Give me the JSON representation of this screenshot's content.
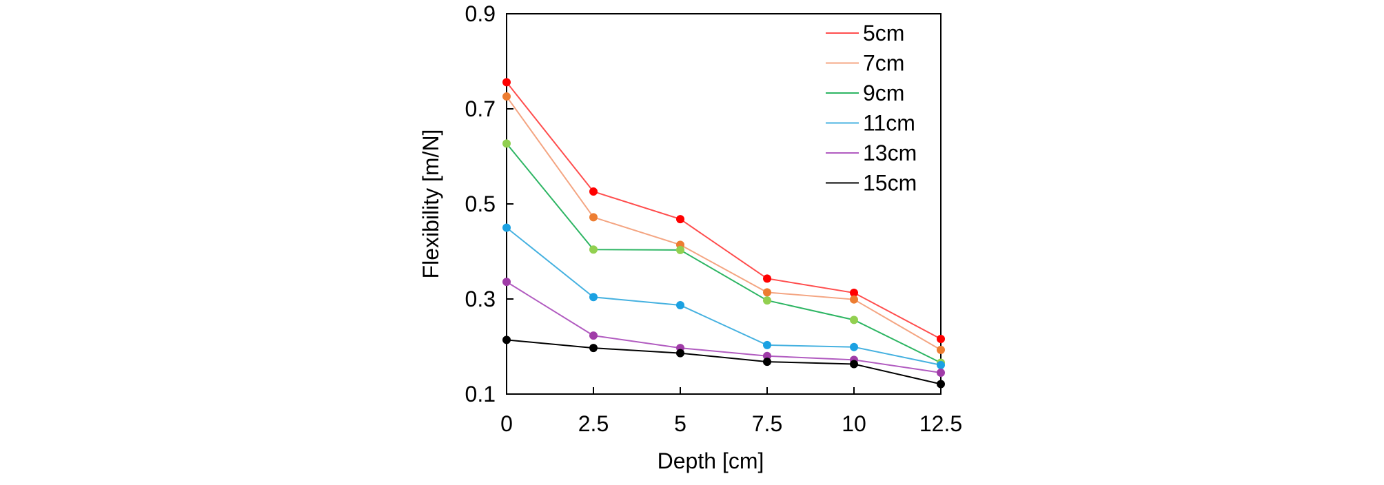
{
  "chart_data": {
    "type": "line",
    "title": "",
    "xlabel": "Depth [cm]",
    "ylabel": "Flexibility [m/N]",
    "x": [
      0,
      2.5,
      5,
      7.5,
      10,
      12.5
    ],
    "x_tick_labels": [
      "0",
      "2.5",
      "5",
      "7.5",
      "10",
      "12.5"
    ],
    "y_ticks": [
      0.1,
      0.3,
      0.5,
      0.7,
      0.9
    ],
    "y_tick_labels": [
      "0.1",
      "0.3",
      "0.5",
      "0.7",
      "0.9"
    ],
    "xlim": [
      0,
      12.5
    ],
    "ylim": [
      0.1,
      0.9
    ],
    "grid": false,
    "legend_position": "top-right",
    "series": [
      {
        "name": "5cm",
        "line_color": "#FF4D4D",
        "marker_color": "#FF0000",
        "values": [
          0.756,
          0.526,
          0.468,
          0.343,
          0.313,
          0.216
        ]
      },
      {
        "name": "7cm",
        "line_color": "#F4A582",
        "marker_color": "#ED7D31",
        "values": [
          0.726,
          0.472,
          0.414,
          0.314,
          0.299,
          0.193
        ]
      },
      {
        "name": "9cm",
        "line_color": "#2DB563",
        "marker_color": "#92D050",
        "values": [
          0.627,
          0.404,
          0.403,
          0.297,
          0.256,
          0.166
        ]
      },
      {
        "name": "11cm",
        "line_color": "#45B1E0",
        "marker_color": "#1BA1E2",
        "values": [
          0.45,
          0.304,
          0.287,
          0.203,
          0.199,
          0.161
        ]
      },
      {
        "name": "13cm",
        "line_color": "#B15BC0",
        "marker_color": "#A03CA8",
        "values": [
          0.336,
          0.223,
          0.197,
          0.18,
          0.172,
          0.145
        ]
      },
      {
        "name": "15cm",
        "line_color": "#000000",
        "marker_color": "#000000",
        "values": [
          0.214,
          0.197,
          0.186,
          0.168,
          0.163,
          0.121
        ]
      }
    ]
  }
}
